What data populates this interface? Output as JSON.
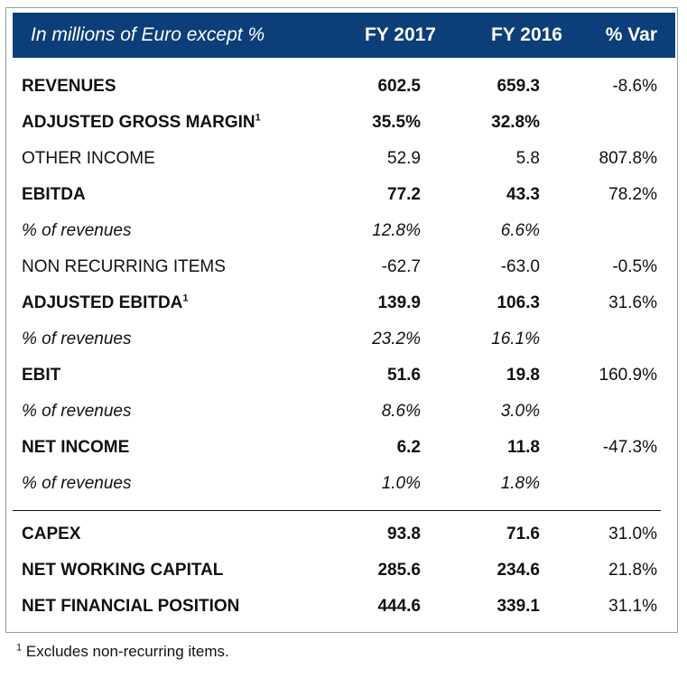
{
  "header": {
    "label": "In millions of Euro except %",
    "col1": "FY 2017",
    "col2": "FY 2016",
    "col3": "% Var"
  },
  "rows": [
    {
      "label": "REVENUES",
      "sup": "",
      "fy2017": "602.5",
      "fy2016": "659.3",
      "var": "-8.6%",
      "style": "bold"
    },
    {
      "label": "ADJUSTED GROSS MARGIN",
      "sup": "1",
      "fy2017": "35.5%",
      "fy2016": "32.8%",
      "var": "",
      "style": "bold"
    },
    {
      "label": "OTHER INCOME",
      "sup": "",
      "fy2017": "52.9",
      "fy2016": "5.8",
      "var": "807.8%",
      "style": "normal"
    },
    {
      "label": "EBITDA",
      "sup": "",
      "fy2017": "77.2",
      "fy2016": "43.3",
      "var": "78.2%",
      "style": "bold"
    },
    {
      "label": "% of revenues",
      "sup": "",
      "fy2017": "12.8%",
      "fy2016": "6.6%",
      "var": "",
      "style": "italic"
    },
    {
      "label": "NON RECURRING ITEMS",
      "sup": "",
      "fy2017": "-62.7",
      "fy2016": "-63.0",
      "var": "-0.5%",
      "style": "normal"
    },
    {
      "label": "ADJUSTED EBITDA",
      "sup": "1",
      "fy2017": "139.9",
      "fy2016": "106.3",
      "var": "31.6%",
      "style": "bold"
    },
    {
      "label": "% of revenues",
      "sup": "",
      "fy2017": "23.2%",
      "fy2016": "16.1%",
      "var": "",
      "style": "italic"
    },
    {
      "label": "EBIT",
      "sup": "",
      "fy2017": "51.6",
      "fy2016": "19.8",
      "var": "160.9%",
      "style": "bold"
    },
    {
      "label": "% of revenues",
      "sup": "",
      "fy2017": "8.6%",
      "fy2016": "3.0%",
      "var": "",
      "style": "italic"
    },
    {
      "label": "NET INCOME",
      "sup": "",
      "fy2017": "6.2",
      "fy2016": "11.8",
      "var": "-47.3%",
      "style": "bold"
    },
    {
      "label": "% of revenues",
      "sup": "",
      "fy2017": "1.0%",
      "fy2016": "1.8%",
      "var": "",
      "style": "italic"
    }
  ],
  "rows2": [
    {
      "label": "CAPEX",
      "sup": "",
      "fy2017": "93.8",
      "fy2016": "71.6",
      "var": "31.0%",
      "style": "bold"
    },
    {
      "label": "NET WORKING CAPITAL",
      "sup": "",
      "fy2017": "285.6",
      "fy2016": "234.6",
      "var": "21.8%",
      "style": "bold"
    },
    {
      "label": "NET FINANCIAL POSITION",
      "sup": "",
      "fy2017": "444.6",
      "fy2016": "339.1",
      "var": "31.1%",
      "style": "bold"
    }
  ],
  "footnote": {
    "marker": "1",
    "text": "Excludes non-recurring items."
  },
  "colors": {
    "header_bg": "#0c3f7a",
    "header_text": "#ffffff"
  }
}
